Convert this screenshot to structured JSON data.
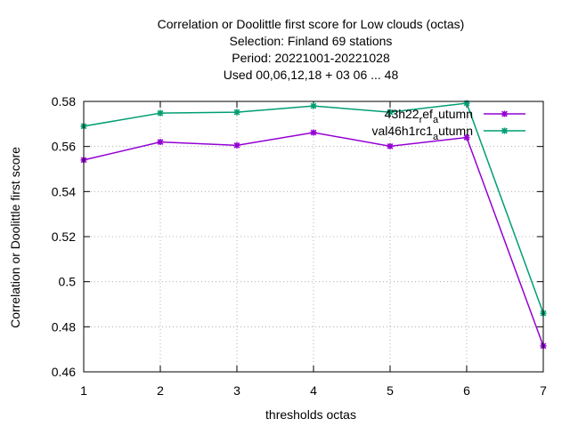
{
  "chart_data": {
    "type": "line",
    "title_lines": [
      "Correlation or Doolittle first score  for Low clouds (octas)",
      "Selection: Finland     69 stations",
      "Period: 20221001-20221028",
      "Used  00,06,12,18  + 03 06 ... 48"
    ],
    "xlabel": "thresholds octas",
    "ylabel": "Correlation or Doolittle first score",
    "x": [
      1,
      2,
      3,
      4,
      5,
      6,
      7
    ],
    "xlim": [
      1,
      7
    ],
    "ylim": [
      0.46,
      0.58
    ],
    "x_ticks": [
      1,
      2,
      3,
      4,
      5,
      6,
      7
    ],
    "y_ticks": [
      0.46,
      0.48,
      0.5,
      0.52,
      0.54,
      0.56,
      0.58
    ],
    "y_tick_labels": [
      "0.46",
      "0.48",
      "0.5",
      "0.52",
      "0.54",
      "0.56",
      "0.58"
    ],
    "grid": true,
    "legend_position": "top-right",
    "series": [
      {
        "name_main": "43h22",
        "name_sub": "r",
        "name_mid": "ef",
        "name_sub2": "a",
        "name_end": "utumn",
        "color": "#9400d3",
        "values": [
          0.554,
          0.562,
          0.5605,
          0.5662,
          0.5601,
          0.564,
          0.4715
        ]
      },
      {
        "name_main": "val46h1rc1",
        "name_sub": "a",
        "name_end": "utumn",
        "color": "#009e73",
        "values": [
          0.569,
          0.5748,
          0.5752,
          0.578,
          0.5752,
          0.5792,
          0.486
        ]
      }
    ]
  }
}
